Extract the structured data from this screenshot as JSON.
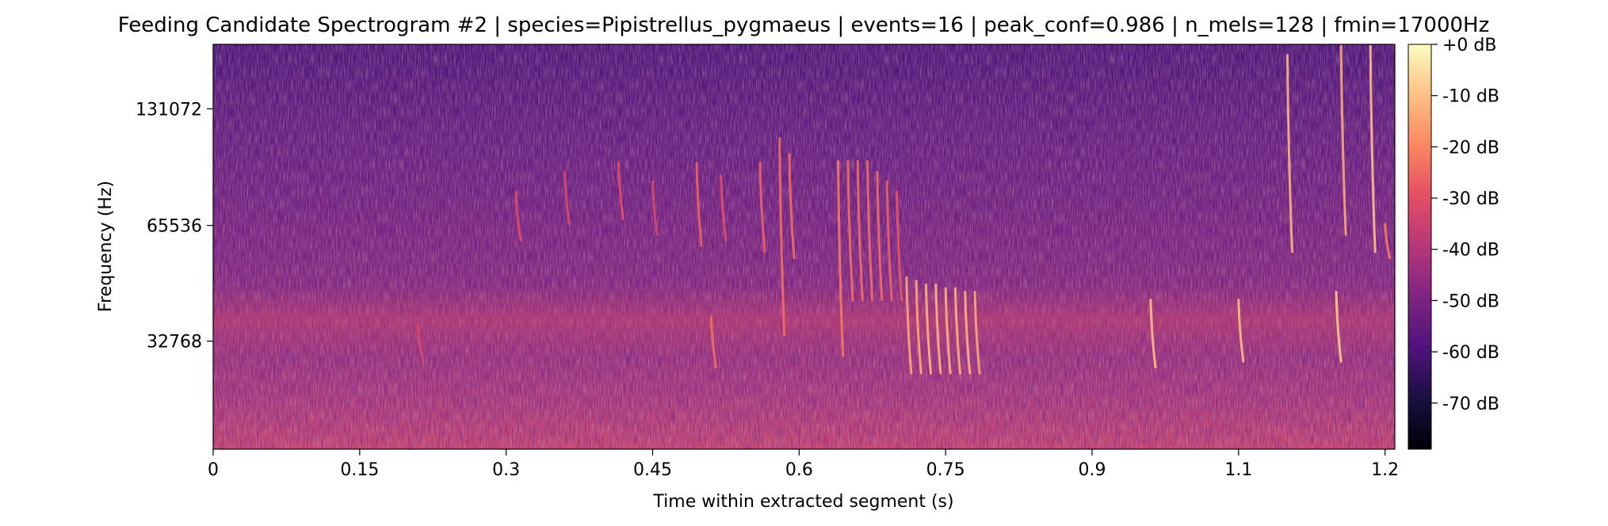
{
  "chart_data": {
    "type": "heatmap",
    "title": "Feeding Candidate Spectrogram #2 | species=Pipistrellus_pygmaeus | events=16 | peak_conf=0.986 | n_mels=128 | fmin=17000Hz",
    "xlabel": "Time within extracted segment (s)",
    "ylabel": "Frequency (Hz)",
    "xlim": [
      0,
      1.21
    ],
    "x_ticks": [
      0,
      0.15,
      0.3,
      0.45,
      0.6,
      0.75,
      0.9,
      1.05,
      1.2
    ],
    "x_tick_labels": [
      "0",
      "0.15",
      "0.3",
      "0.45",
      "0.6",
      "0.75",
      "0.9",
      "1.1",
      "1.2"
    ],
    "y_scale": "mel",
    "ylim_hz": [
      17000,
      192000
    ],
    "y_ticks": [
      32768,
      65536,
      131072
    ],
    "y_tick_labels": [
      "32768",
      "65536",
      "131072"
    ],
    "colormap": "magma",
    "colorbar": {
      "range_db": [
        -79,
        0
      ],
      "ticks": [
        0,
        -10,
        -20,
        -30,
        -40,
        -50,
        -60,
        -70
      ],
      "tick_labels": [
        "+0 dB",
        "-10 dB",
        "-20 dB",
        "-30 dB",
        "-40 dB",
        "-50 dB",
        "-60 dB",
        "-70 dB"
      ]
    },
    "calls": [
      {
        "t": 0.21,
        "f_high_hz": 36000,
        "f_low_hz": 29000,
        "level_db": -32
      },
      {
        "t": 0.31,
        "f_high_hz": 80000,
        "f_low_hz": 60000,
        "level_db": -30
      },
      {
        "t": 0.36,
        "f_high_hz": 90000,
        "f_low_hz": 66000,
        "level_db": -32
      },
      {
        "t": 0.415,
        "f_high_hz": 95000,
        "f_low_hz": 68000,
        "level_db": -30
      },
      {
        "t": 0.45,
        "f_high_hz": 85000,
        "f_low_hz": 62000,
        "level_db": -32
      },
      {
        "t": 0.495,
        "f_high_hz": 95000,
        "f_low_hz": 58000,
        "level_db": -26
      },
      {
        "t": 0.51,
        "f_high_hz": 38000,
        "f_low_hz": 28000,
        "level_db": -24
      },
      {
        "t": 0.52,
        "f_high_hz": 88000,
        "f_low_hz": 60000,
        "level_db": -30
      },
      {
        "t": 0.56,
        "f_high_hz": 95000,
        "f_low_hz": 56000,
        "level_db": -26
      },
      {
        "t": 0.58,
        "f_high_hz": 110000,
        "f_low_hz": 34000,
        "level_db": -24
      },
      {
        "t": 0.59,
        "f_high_hz": 100000,
        "f_low_hz": 54000,
        "level_db": -24
      },
      {
        "t": 0.64,
        "f_high_hz": 96000,
        "f_low_hz": 30000,
        "level_db": -22
      },
      {
        "t": 0.65,
        "f_high_hz": 96000,
        "f_low_hz": 42000,
        "level_db": -24
      },
      {
        "t": 0.66,
        "f_high_hz": 96000,
        "f_low_hz": 42000,
        "level_db": -24
      },
      {
        "t": 0.67,
        "f_high_hz": 96000,
        "f_low_hz": 42000,
        "level_db": -24
      },
      {
        "t": 0.68,
        "f_high_hz": 90000,
        "f_low_hz": 42000,
        "level_db": -24
      },
      {
        "t": 0.69,
        "f_high_hz": 85000,
        "f_low_hz": 42000,
        "level_db": -26
      },
      {
        "t": 0.7,
        "f_high_hz": 80000,
        "f_low_hz": 42000,
        "level_db": -28
      },
      {
        "t": 0.71,
        "f_high_hz": 48000,
        "f_low_hz": 27000,
        "level_db": -14
      },
      {
        "t": 0.72,
        "f_high_hz": 47000,
        "f_low_hz": 27000,
        "level_db": -14
      },
      {
        "t": 0.73,
        "f_high_hz": 46000,
        "f_low_hz": 27000,
        "level_db": -12
      },
      {
        "t": 0.74,
        "f_high_hz": 46000,
        "f_low_hz": 27000,
        "level_db": -12
      },
      {
        "t": 0.75,
        "f_high_hz": 45000,
        "f_low_hz": 27000,
        "level_db": -12
      },
      {
        "t": 0.76,
        "f_high_hz": 45000,
        "f_low_hz": 27000,
        "level_db": -12
      },
      {
        "t": 0.77,
        "f_high_hz": 44000,
        "f_low_hz": 27000,
        "level_db": -12
      },
      {
        "t": 0.78,
        "f_high_hz": 44000,
        "f_low_hz": 27000,
        "level_db": -14
      },
      {
        "t": 0.96,
        "f_high_hz": 42000,
        "f_low_hz": 28000,
        "level_db": -10
      },
      {
        "t": 1.05,
        "f_high_hz": 42000,
        "f_low_hz": 29000,
        "level_db": -10
      },
      {
        "t": 1.1,
        "f_high_hz": 180000,
        "f_low_hz": 56000,
        "level_db": -12
      },
      {
        "t": 1.15,
        "f_high_hz": 44000,
        "f_low_hz": 29000,
        "level_db": -8
      },
      {
        "t": 1.155,
        "f_high_hz": 190000,
        "f_low_hz": 62000,
        "level_db": -14
      },
      {
        "t": 1.185,
        "f_high_hz": 190000,
        "f_low_hz": 56000,
        "level_db": -10
      },
      {
        "t": 1.2,
        "f_high_hz": 66000,
        "f_low_hz": 54000,
        "level_db": -22
      }
    ]
  }
}
